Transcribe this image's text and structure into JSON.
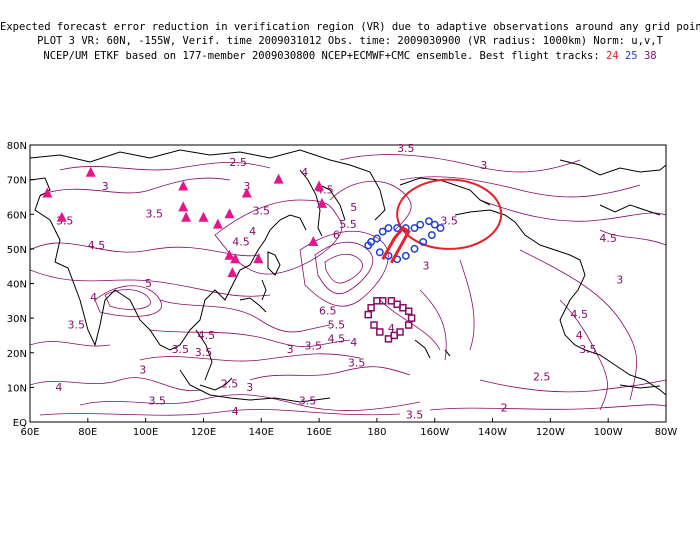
{
  "title": {
    "line1": "Expected forecast error reduction in verification region (VR) due to adaptive observations around any grid point.",
    "line2": "PLOT 3 VR: 60N, -155W, Verif. time 2009031012 Obs. time: 2009030900 (VR radius: 1000km) Norm: u,v,T",
    "line3_prefix": "NCEP/UM ETKF based on 177-member 2009030800 NCEP+ECMWF+CMC ensemble. Best flight tracks:",
    "track_a": "24",
    "track_b": "25",
    "track_c": "38"
  },
  "axes": {
    "x_ticks": [
      "60E",
      "80E",
      "100E",
      "120E",
      "140E",
      "160E",
      "180",
      "160W",
      "140W",
      "120W",
      "100W",
      "80W"
    ],
    "y_ticks": [
      "80N",
      "70N",
      "60N",
      "50N",
      "40N",
      "30N",
      "20N",
      "10N",
      "EQ"
    ]
  },
  "colors": {
    "contour": "#8a0a6a",
    "observation_site": "#e6148c",
    "track_red": "#e8202a",
    "track_blue": "#1f3fd8",
    "track_purple": "#8a0a6a",
    "coast": "#000000"
  },
  "contour_labels": [
    {
      "text": "2.5",
      "lon": 132,
      "lat": 74
    },
    {
      "text": "3",
      "lon": 86,
      "lat": 67
    },
    {
      "text": "3",
      "lon": 135,
      "lat": 67
    },
    {
      "text": "3.5",
      "lon": 72,
      "lat": 57
    },
    {
      "text": "3.5",
      "lon": 103,
      "lat": 59
    },
    {
      "text": "3.5",
      "lon": 140,
      "lat": 60
    },
    {
      "text": "4.5",
      "lon": 83,
      "lat": 50
    },
    {
      "text": "4.5",
      "lon": 133,
      "lat": 51
    },
    {
      "text": "4",
      "lon": 155,
      "lat": 71
    },
    {
      "text": "4.5",
      "lon": 162,
      "lat": 66
    },
    {
      "text": "5",
      "lon": 172,
      "lat": 61
    },
    {
      "text": "5.5",
      "lon": 170,
      "lat": 56
    },
    {
      "text": "6",
      "lon": 166,
      "lat": 53
    },
    {
      "text": "4",
      "lon": 137,
      "lat": 54
    },
    {
      "text": "5",
      "lon": 101,
      "lat": 39
    },
    {
      "text": "3.5",
      "lon": 190,
      "lat": 78
    },
    {
      "text": "3.5",
      "lon": 205,
      "lat": 57
    },
    {
      "text": "3",
      "lon": 197,
      "lat": 44
    },
    {
      "text": "3",
      "lon": 217,
      "lat": 73
    },
    {
      "text": "4.5",
      "lon": 260,
      "lat": 52
    },
    {
      "text": "4",
      "lon": 82,
      "lat": 35
    },
    {
      "text": "6.5",
      "lon": 163,
      "lat": 31
    },
    {
      "text": "5.5",
      "lon": 166,
      "lat": 27
    },
    {
      "text": "4.5",
      "lon": 166,
      "lat": 23
    },
    {
      "text": "4",
      "lon": 172,
      "lat": 22
    },
    {
      "text": "4",
      "lon": 185,
      "lat": 26
    },
    {
      "text": "3.5",
      "lon": 76,
      "lat": 27
    },
    {
      "text": "3.5",
      "lon": 112,
      "lat": 20
    },
    {
      "text": "3.5",
      "lon": 120,
      "lat": 19
    },
    {
      "text": "4.5",
      "lon": 121,
      "lat": 24
    },
    {
      "text": "3.5",
      "lon": 158,
      "lat": 21
    },
    {
      "text": "3",
      "lon": 150,
      "lat": 20
    },
    {
      "text": "3.5",
      "lon": 173,
      "lat": 16
    },
    {
      "text": "3",
      "lon": 99,
      "lat": 14
    },
    {
      "text": "4",
      "lon": 70,
      "lat": 9
    },
    {
      "text": "2.5",
      "lon": 129,
      "lat": 10
    },
    {
      "text": "3",
      "lon": 136,
      "lat": 9
    },
    {
      "text": "3.5",
      "lon": 104,
      "lat": 5
    },
    {
      "text": "3.5",
      "lon": 156,
      "lat": 5
    },
    {
      "text": "4",
      "lon": 131,
      "lat": 2
    },
    {
      "text": "3.5",
      "lon": 193,
      "lat": 1
    },
    {
      "text": "2",
      "lon": 224,
      "lat": 3
    },
    {
      "text": "2.5",
      "lon": 237,
      "lat": 12
    },
    {
      "text": "4",
      "lon": 250,
      "lat": 24
    },
    {
      "text": "4.5",
      "lon": 250,
      "lat": 30
    },
    {
      "text": "3.5",
      "lon": 253,
      "lat": 20
    },
    {
      "text": "3",
      "lon": 264,
      "lat": 40
    }
  ],
  "observation_sites": [
    [
      66,
      66
    ],
    [
      71,
      59
    ],
    [
      81,
      72
    ],
    [
      113,
      68
    ],
    [
      113,
      62
    ],
    [
      114,
      59
    ],
    [
      120,
      59
    ],
    [
      125,
      57
    ],
    [
      129,
      60
    ],
    [
      135,
      66
    ],
    [
      146,
      70
    ],
    [
      160,
      68
    ],
    [
      161,
      63
    ],
    [
      158,
      52
    ],
    [
      129,
      48
    ],
    [
      131,
      47
    ],
    [
      130,
      43
    ],
    [
      139,
      47
    ]
  ],
  "track_24_blue": [
    [
      177,
      51
    ],
    [
      178,
      52
    ],
    [
      180,
      53
    ],
    [
      182,
      55
    ],
    [
      184,
      56
    ],
    [
      187,
      56
    ],
    [
      190,
      56
    ],
    [
      193,
      56
    ],
    [
      195,
      57
    ],
    [
      198,
      58
    ],
    [
      200,
      57
    ],
    [
      202,
      56
    ],
    [
      199,
      54
    ],
    [
      196,
      52
    ],
    [
      193,
      50
    ],
    [
      190,
      48
    ],
    [
      187,
      47
    ],
    [
      184,
      48
    ],
    [
      181,
      49
    ]
  ],
  "track_25_red": [
    [
      182,
      47
    ],
    [
      186,
      53
    ],
    [
      189,
      56
    ],
    [
      191,
      55
    ],
    [
      185,
      46
    ]
  ],
  "track_38_purple": [
    [
      178,
      33
    ],
    [
      180,
      35
    ],
    [
      182,
      35
    ],
    [
      185,
      35
    ],
    [
      187,
      34
    ],
    [
      189,
      33
    ],
    [
      191,
      32
    ],
    [
      192,
      30
    ],
    [
      191,
      28
    ],
    [
      188,
      26
    ],
    [
      186,
      25
    ],
    [
      184,
      24
    ],
    [
      181,
      26
    ],
    [
      179,
      28
    ],
    [
      177,
      31
    ]
  ],
  "verification_region": {
    "center_lon": 205,
    "center_lat": 60,
    "radius_lon": 18,
    "radius_lat": 10
  }
}
